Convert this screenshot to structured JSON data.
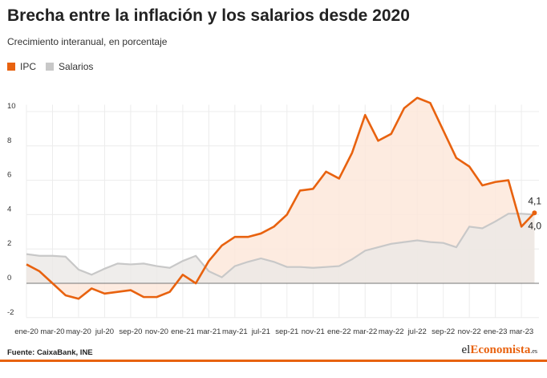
{
  "title": "Brecha entre la inflación y los salarios desde 2020",
  "subtitle": "Crecimiento interanual, en porcentaje",
  "source": "Fuente: CaixaBank, INE",
  "logo": "elEconomista.es",
  "colors": {
    "ipc": "#e8620f",
    "salarios": "#c8c8c8",
    "ipc_fill": "#fde8da",
    "salarios_fill": "#ebe8e6"
  },
  "chart_data": {
    "type": "area",
    "x": [
      "ene-20",
      "feb-20",
      "mar-20",
      "abr-20",
      "may-20",
      "jun-20",
      "jul-20",
      "ago-20",
      "sep-20",
      "oct-20",
      "nov-20",
      "dic-20",
      "ene-21",
      "feb-21",
      "mar-21",
      "abr-21",
      "may-21",
      "jun-21",
      "jul-21",
      "ago-21",
      "sep-21",
      "oct-21",
      "nov-21",
      "dic-21",
      "ene-22",
      "feb-22",
      "mar-22",
      "abr-22",
      "may-22",
      "jun-22",
      "jul-22",
      "ago-22",
      "sep-22",
      "oct-22",
      "nov-22",
      "dic-22",
      "ene-23",
      "feb-23",
      "mar-23",
      "abr-23"
    ],
    "x_tick_labels": [
      "ene-20",
      "mar-20",
      "may-20",
      "jul-20",
      "sep-20",
      "nov-20",
      "ene-21",
      "mar-21",
      "may-21",
      "jul-21",
      "sep-21",
      "nov-21",
      "ene-22",
      "mar-22",
      "may-22",
      "jul-22",
      "sep-22",
      "nov-22",
      "ene-23",
      "mar-23"
    ],
    "series": [
      {
        "name": "IPC",
        "values": [
          1.1,
          0.7,
          0.0,
          -0.7,
          -0.9,
          -0.3,
          -0.6,
          -0.5,
          -0.4,
          -0.8,
          -0.8,
          -0.5,
          0.5,
          0.0,
          1.3,
          2.2,
          2.7,
          2.7,
          2.9,
          3.3,
          4.0,
          5.4,
          5.5,
          6.5,
          6.1,
          7.6,
          9.8,
          8.3,
          8.7,
          10.2,
          10.8,
          10.5,
          8.9,
          7.3,
          6.8,
          5.7,
          5.9,
          6.0,
          3.3,
          4.1
        ]
      },
      {
        "name": "Salarios",
        "values": [
          1.7,
          1.6,
          1.6,
          1.55,
          0.8,
          0.5,
          0.85,
          1.15,
          1.1,
          1.15,
          1.0,
          0.9,
          1.3,
          1.6,
          0.7,
          0.35,
          1.0,
          1.25,
          1.45,
          1.25,
          0.95,
          0.95,
          0.9,
          0.95,
          1.0,
          1.4,
          1.9,
          2.1,
          2.3,
          2.4,
          2.5,
          2.4,
          2.35,
          2.1,
          3.3,
          3.2,
          3.6,
          4.05,
          4.05,
          4.0
        ]
      }
    ],
    "y_ticks": [
      -2,
      0,
      2,
      4,
      6,
      8,
      10
    ],
    "y_tick_labels": [
      "-2",
      "0",
      "2",
      "4",
      "6",
      "8",
      "10"
    ],
    "ylim": [
      -2,
      10.8
    ],
    "grid": true,
    "legend": "top-left",
    "annotations": [
      "4,1",
      "4,0"
    ]
  }
}
